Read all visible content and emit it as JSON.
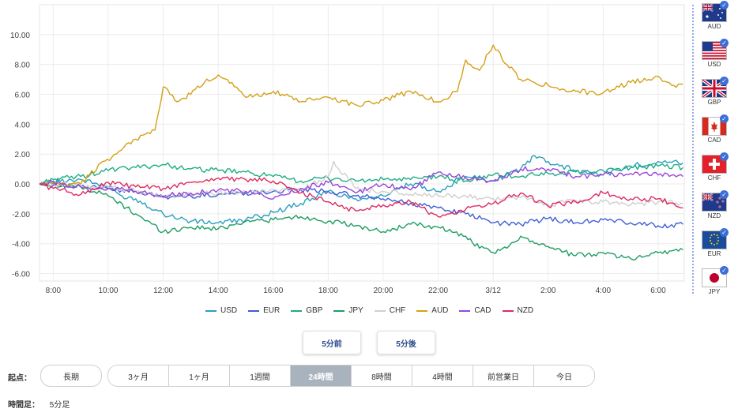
{
  "chart_data": {
    "type": "line",
    "ylim": [
      -6.5,
      12
    ],
    "xlim": [
      7.5,
      30.95
    ],
    "y_ticks": [
      "10.00",
      "8.00",
      "6.00",
      "4.00",
      "2.00",
      "0.00",
      "-2.00",
      "-4.00",
      "-6.00"
    ],
    "y_tick_values": [
      10,
      8,
      6,
      4,
      2,
      0,
      -2,
      -4,
      -6
    ],
    "x_ticks": [
      "8:00",
      "10:00",
      "12:00",
      "14:00",
      "16:00",
      "18:00",
      "20:00",
      "22:00",
      "3/12",
      "2:00",
      "4:00",
      "6:00"
    ],
    "x_tick_values": [
      8,
      10,
      12,
      14,
      16,
      18,
      20,
      22,
      24,
      26,
      28,
      30
    ],
    "grid": true,
    "legend_position": "bottom",
    "series": [
      {
        "name": "USD",
        "color": "#2a9fbf",
        "x": [
          7.5,
          8,
          9,
          10,
          10.5,
          11,
          12,
          13,
          14,
          15,
          16,
          17,
          18,
          19,
          20,
          21,
          22,
          23,
          24,
          25,
          25.5,
          26,
          27,
          28,
          29,
          30,
          30.9
        ],
        "values": [
          0,
          0.2,
          0.3,
          -0.2,
          -0.8,
          -1,
          -2,
          -2.5,
          -2.6,
          -2.4,
          -1.9,
          -1.3,
          -0.5,
          -1,
          -0.8,
          0,
          -0.5,
          0.5,
          0.2,
          1,
          1.9,
          1.5,
          0.9,
          0.6,
          1.2,
          1.5,
          1.4
        ]
      },
      {
        "name": "EUR",
        "color": "#3f5fd6",
        "x": [
          7.5,
          8,
          9,
          10,
          11,
          12,
          13,
          14,
          15,
          16,
          17,
          18,
          19,
          20,
          21,
          22,
          23,
          24,
          25,
          26,
          27,
          28,
          29,
          30,
          30.9
        ],
        "values": [
          0,
          -0.1,
          -0.2,
          -0.3,
          -0.5,
          -0.9,
          -0.8,
          -0.7,
          -0.6,
          -0.5,
          -0.4,
          -0.5,
          -0.8,
          -1,
          -1.3,
          -1.6,
          -2,
          -2.6,
          -2.7,
          -2.3,
          -2.6,
          -2.4,
          -2.6,
          -2.8,
          -2.7
        ]
      },
      {
        "name": "GBP",
        "color": "#1dad83",
        "x": [
          7.5,
          8,
          9,
          10,
          11,
          12,
          13,
          14,
          15,
          16,
          17,
          18,
          19,
          20,
          21,
          22,
          23,
          24,
          25,
          26,
          27,
          28,
          29,
          30,
          30.9
        ],
        "values": [
          0,
          0.3,
          0.5,
          0.9,
          1.1,
          1.3,
          1,
          0.9,
          0.8,
          0.5,
          0.2,
          0.4,
          0.2,
          0.3,
          0.3,
          0.5,
          0.2,
          0.6,
          0.5,
          0.7,
          0.8,
          0.9,
          1.1,
          1.2,
          1.1
        ]
      },
      {
        "name": "JPY",
        "color": "#1e9e62",
        "x": [
          7.5,
          8,
          9,
          10,
          11,
          12,
          13,
          14,
          15,
          16,
          17,
          18,
          19,
          20,
          21,
          22,
          23,
          23.5,
          24,
          24.5,
          25,
          26,
          27,
          28,
          29,
          30,
          30.9
        ],
        "values": [
          0,
          0,
          -0.2,
          -0.8,
          -2,
          -3.2,
          -2.9,
          -3,
          -2.5,
          -2.4,
          -2.2,
          -2.5,
          -2.8,
          -3.2,
          -2.7,
          -2.9,
          -3.5,
          -4.3,
          -4.6,
          -4.3,
          -3.5,
          -4.2,
          -4.8,
          -4.6,
          -5,
          -4.6,
          -4.4
        ]
      },
      {
        "name": "CHF",
        "color": "#cfcfcf",
        "x": [
          7.5,
          8,
          9,
          10,
          11,
          12,
          13,
          14,
          15,
          16,
          17,
          18,
          18.2,
          19,
          20,
          21,
          22,
          23,
          24,
          25,
          26,
          27,
          28,
          29,
          30,
          30.9
        ],
        "values": [
          0,
          0,
          -0.1,
          -0.2,
          -0.5,
          -0.8,
          -0.7,
          -0.6,
          -0.5,
          -0.4,
          -0.4,
          0.5,
          1.5,
          -0.3,
          -0.5,
          -0.7,
          -0.8,
          -0.8,
          -1,
          -0.9,
          -1.4,
          -1.1,
          -1.2,
          -1.4,
          -1.2,
          -1.3
        ]
      },
      {
        "name": "AUD",
        "color": "#d4a017",
        "x": [
          7.5,
          8,
          9,
          9.8,
          10.3,
          11,
          11.7,
          12,
          12.5,
          13,
          13.5,
          14,
          14.5,
          15,
          16,
          17,
          18,
          19,
          20,
          21,
          22,
          22.7,
          23,
          23.5,
          24,
          24.5,
          25,
          26,
          27,
          28,
          29,
          30,
          30.5,
          30.9
        ],
        "values": [
          0,
          0,
          0,
          1.5,
          2,
          3,
          3.6,
          6.5,
          5.5,
          6,
          6.8,
          7.3,
          6.8,
          5.8,
          6.2,
          5.5,
          5.8,
          5.3,
          5.6,
          6.2,
          5.5,
          6.2,
          8.3,
          7.6,
          9.3,
          8,
          7,
          6.6,
          6.2,
          6.1,
          6.8,
          7.2,
          6.6,
          6.7
        ]
      },
      {
        "name": "CAD",
        "color": "#9b45d8",
        "x": [
          7.5,
          8,
          9,
          10,
          11,
          12,
          13,
          14,
          15,
          16,
          17,
          18,
          19,
          20,
          21,
          22,
          23,
          24,
          25,
          26,
          27,
          28,
          29,
          30,
          30.9
        ],
        "values": [
          0,
          0.1,
          -0.2,
          -0.3,
          -0.5,
          -0.8,
          -0.6,
          -0.4,
          -0.5,
          -1,
          -0.3,
          0.1,
          -0.6,
          0,
          -0.4,
          0.8,
          0.4,
          0.2,
          1,
          1,
          0.5,
          0.6,
          0.7,
          0.6,
          0.5
        ]
      },
      {
        "name": "NZD",
        "color": "#de2b5f",
        "x": [
          7.5,
          8,
          9,
          10,
          11,
          12,
          13,
          14,
          15,
          16,
          17,
          18,
          19,
          20,
          21,
          22,
          23,
          24,
          25,
          26,
          27,
          28,
          29,
          30,
          30.9
        ],
        "values": [
          0,
          -0.3,
          -0.7,
          0.1,
          -0.2,
          -0.3,
          0.1,
          0.4,
          0.3,
          0.2,
          -0.6,
          -1.2,
          -1.8,
          -1.4,
          -1.2,
          -2.2,
          -1.7,
          -1.3,
          -0.6,
          -1.5,
          -1.2,
          -0.6,
          -1,
          -1,
          -1.6
        ]
      }
    ]
  },
  "buttons": {
    "prev": "5分前",
    "next": "5分後"
  },
  "period": {
    "label": "起点：",
    "long": "長期",
    "options": [
      "3ヶ月",
      "1ヶ月",
      "1週間",
      "24時間",
      "8時間",
      "4時間",
      "前営業日",
      "今日"
    ],
    "active": "24時間"
  },
  "footer": {
    "label": "時間足：",
    "value": "5分足"
  },
  "flags": [
    {
      "code": "AUD",
      "checked": "✓"
    },
    {
      "code": "USD",
      "checked": "✓"
    },
    {
      "code": "GBP",
      "checked": "✓"
    },
    {
      "code": "CAD",
      "checked": "✓"
    },
    {
      "code": "CHF",
      "checked": "✓"
    },
    {
      "code": "NZD",
      "checked": "✓"
    },
    {
      "code": "EUR",
      "checked": "✓"
    },
    {
      "code": "JPY",
      "checked": "✓"
    }
  ],
  "colors": {
    "accent": "#3d6ed6",
    "active_period": "#a9b3bd",
    "flag_divider": "#2b52c7"
  }
}
